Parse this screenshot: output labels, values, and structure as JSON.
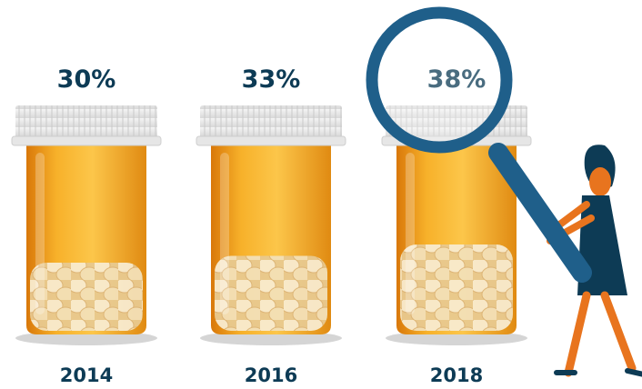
{
  "chart_data": {
    "type": "pictograph",
    "categories": [
      "2014",
      "2016",
      "2018"
    ],
    "values": [
      30,
      33,
      38
    ],
    "value_labels": [
      "30%",
      "33%",
      "38%"
    ],
    "color": "#f5a21f"
  }
}
